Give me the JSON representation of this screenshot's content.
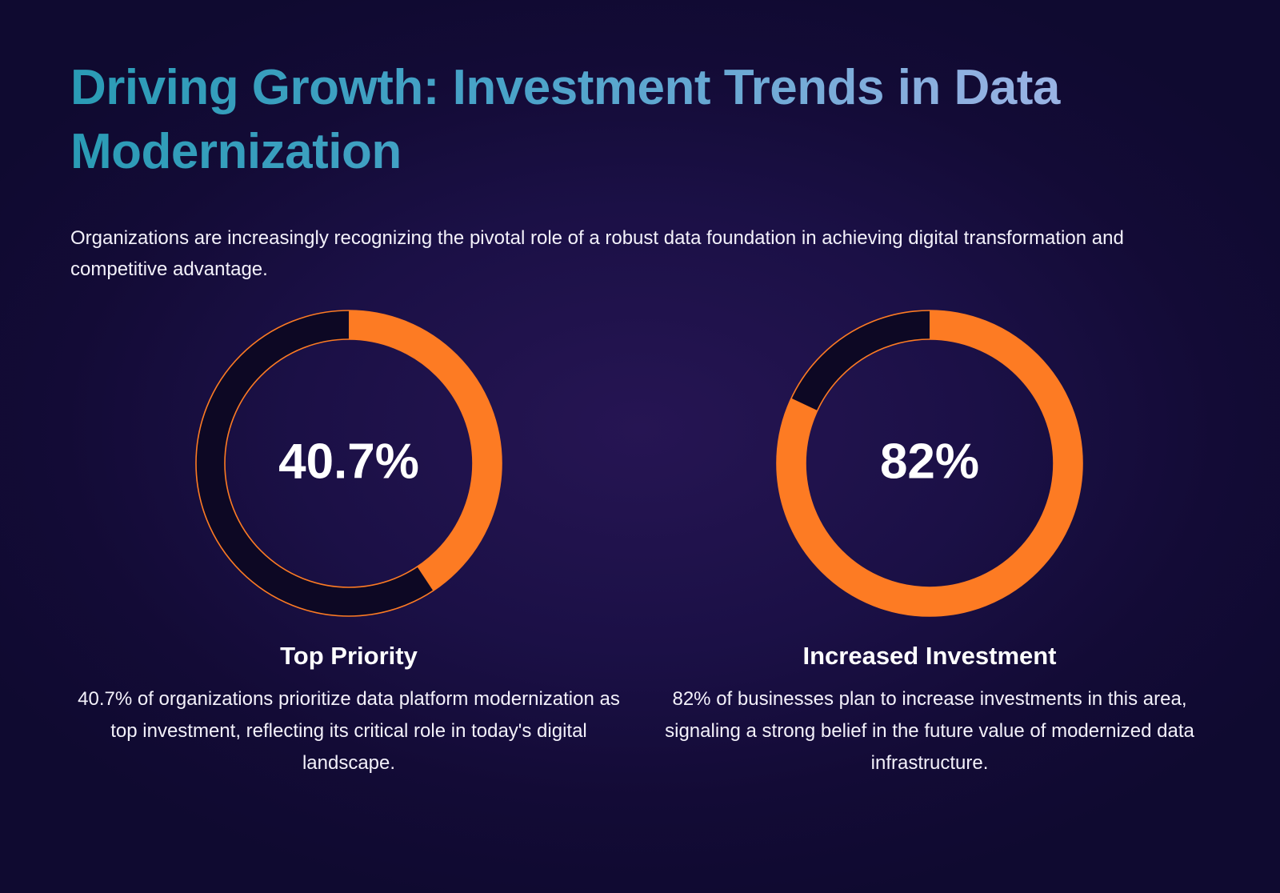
{
  "header": {
    "title": "Driving Growth: Investment Trends in Data Modernization",
    "intro": "Organizations are increasingly recognizing the pivotal role of a robust data foundation in achieving digital transformation and competitive advantage."
  },
  "colors": {
    "accent": "#fd7b23",
    "track": "#0d0824"
  },
  "chart_data": [
    {
      "type": "pie",
      "variant": "donut",
      "value": 40.7,
      "unit": "%",
      "center_label": "40.7%",
      "title": "Top Priority",
      "description": "40.7% of organizations prioritize data platform modernization as top investment, reflecting its critical role in today's digital landscape."
    },
    {
      "type": "pie",
      "variant": "donut",
      "value": 82,
      "unit": "%",
      "center_label": "82%",
      "title": "Increased Investment",
      "description": "82% of businesses plan to increase investments in this area, signaling a strong belief in the future value of modernized data infrastructure."
    }
  ]
}
